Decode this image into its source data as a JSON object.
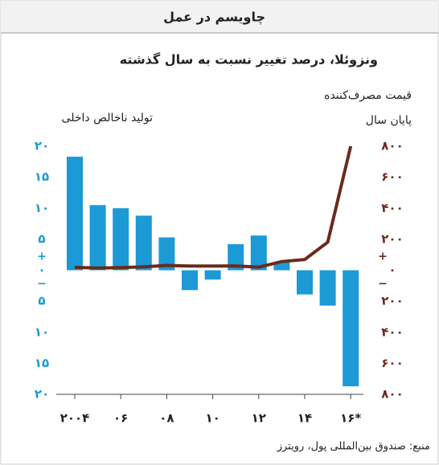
{
  "chart_data": {
    "type": "bar-line",
    "header": "چاویسم در عمل",
    "title": "ونزوئلا، درصد تغییر نسبت به سال گذشته",
    "y_label": "تولید ناخالص داخلی",
    "y2_label": [
      "قیمت مصرف‌کننده",
      "پایان سال"
    ],
    "sign_labels": [
      "+",
      "−"
    ],
    "source": "منبع: صندوق بین‌المللی پول، رویترز",
    "categories": [
      "۲۰۰۴",
      null,
      "۰۶",
      null,
      "۰۸",
      null,
      "۱۰",
      null,
      "۱۲",
      null,
      "۱۴",
      null,
      "۱۶*"
    ],
    "series": [
      {
        "type": "bar",
        "color": "#1b9ad6",
        "values": [
          18.3,
          10.5,
          10.0,
          8.8,
          5.3,
          -3.2,
          -1.5,
          4.2,
          5.6,
          1.3,
          -3.9,
          -5.7,
          -18.7
        ]
      },
      {
        "type": "line",
        "axis": "y2",
        "color": "#6b2a1c",
        "values": [
          19,
          14,
          17,
          22,
          31,
          27,
          27,
          28,
          20,
          56,
          69,
          181,
          800
        ]
      }
    ],
    "ylim": [
      -20,
      20
    ],
    "yticks": [
      {
        "value": 20,
        "label": "۲۰"
      },
      {
        "value": 15,
        "label": "۱۵"
      },
      {
        "value": 10,
        "label": "۱۰"
      },
      {
        "value": 5,
        "label": "۵"
      },
      {
        "value": 0,
        "label": "۰"
      },
      {
        "value": -5,
        "label": "۵"
      },
      {
        "value": -10,
        "label": "۱۰"
      },
      {
        "value": -15,
        "label": "۱۵"
      },
      {
        "value": -20,
        "label": "۲۰"
      }
    ],
    "y2lim": [
      -800,
      800
    ],
    "y2ticks": [
      {
        "value": 800,
        "label": "۸۰۰"
      },
      {
        "value": 600,
        "label": "۶۰۰"
      },
      {
        "value": 400,
        "label": "۴۰۰"
      },
      {
        "value": 200,
        "label": "۲۰۰"
      },
      {
        "value": 0,
        "label": "۰"
      },
      {
        "value": -200,
        "label": "۲۰۰"
      },
      {
        "value": -400,
        "label": "۴۰۰"
      },
      {
        "value": -600,
        "label": "۶۰۰"
      },
      {
        "value": -800,
        "label": "۸۰۰"
      }
    ],
    "y_color": "#1b9ad6",
    "y2_color": "#6b2a1c"
  }
}
